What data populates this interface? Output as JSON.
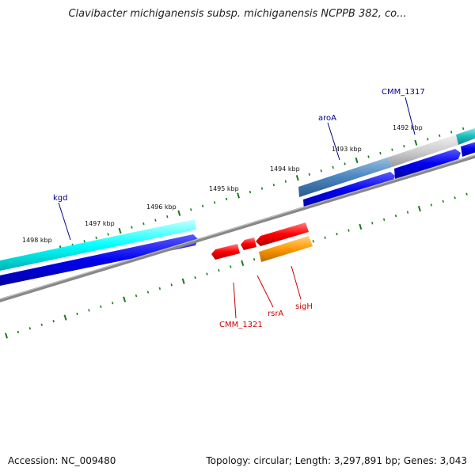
{
  "title": "Clavibacter michiganensis subsp. michiganensis NCPPB 382, co...",
  "footer": {
    "accession": "Accession: NC_009480",
    "summary": "Topology: circular; Length: 3,297,891 bp; Genes: 3,043"
  },
  "kbp_labels": [
    "1498 kbp",
    "1497 kbp",
    "1496 kbp",
    "1495 kbp",
    "1494 kbp",
    "1493 kbp",
    "1492 kbp"
  ],
  "gene_labels": {
    "kgd": "kgd",
    "aroA": "aroA",
    "cmm1317": "CMM_1317",
    "cmm1321": "CMM_1321",
    "rsrA": "rsrA",
    "sigH": "sigH"
  },
  "colors": {
    "forward_label": "#00008b",
    "reverse_label": "#cc0000",
    "tick": "#1a7a1a",
    "backbone": "#888888",
    "cds": "#0000ee",
    "kgd_gene": "#00ffff",
    "aroA_gene": "#4a86c0",
    "grey_gene": "#cfcfcf",
    "cmm1317_gene": "#20c0c0",
    "red_gene": "#ff0000",
    "sigH_gene": "#ff9900"
  }
}
